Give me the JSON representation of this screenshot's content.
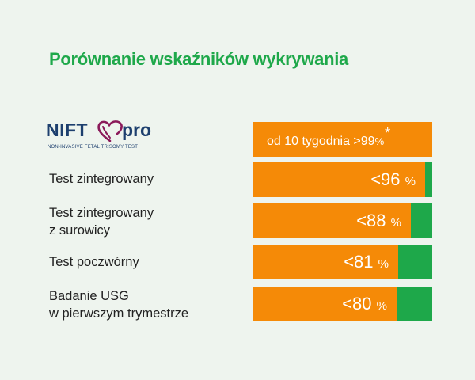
{
  "title": "Porównanie wskaźników wykrywania",
  "logo": {
    "name_part1": "NIFT",
    "name_part2": "pro",
    "subtitle": "NON-INVASIVE FETAL TRISOMY TEST",
    "icon": "heart-icon",
    "color": "#1d3f6e",
    "heart_color": "#8b1a5a"
  },
  "colors": {
    "orange": "#f58a07",
    "green": "#1ea84a",
    "background": "#eef4ee"
  },
  "first_bar": {
    "text": "od 10 tygodnia >99",
    "percent": "%",
    "asterisk": "*"
  },
  "chart_data": {
    "type": "bar",
    "title": "Porównanie wskaźników wykrywania",
    "categories": [
      "NIFTY pro",
      "Test zintegrowany",
      "Test zintegrowany z surowicy",
      "Test poczwórny",
      "Badanie USG w pierwszym trymestrze"
    ],
    "values": [
      99,
      96,
      88,
      81,
      80
    ],
    "value_labels": [
      "od 10 tygodnia >99%*",
      "<96 %",
      "<88 %",
      "<81 %",
      "<80 %"
    ],
    "ylim": [
      0,
      100
    ]
  },
  "rows": [
    {
      "label_line1": "Test zintegrowany",
      "label_line2": "",
      "value": "<96",
      "unit": "%",
      "fill": 0.96
    },
    {
      "label_line1": "Test zintegrowany",
      "label_line2": "z surowicy",
      "value": "<88",
      "unit": "%",
      "fill": 0.88
    },
    {
      "label_line1": "Test poczwórny",
      "label_line2": "",
      "value": "<81",
      "unit": "%",
      "fill": 0.81
    },
    {
      "label_line1": "Badanie USG",
      "label_line2": "w pierwszym trymestrze",
      "value": "<80",
      "unit": "%",
      "fill": 0.8
    }
  ]
}
